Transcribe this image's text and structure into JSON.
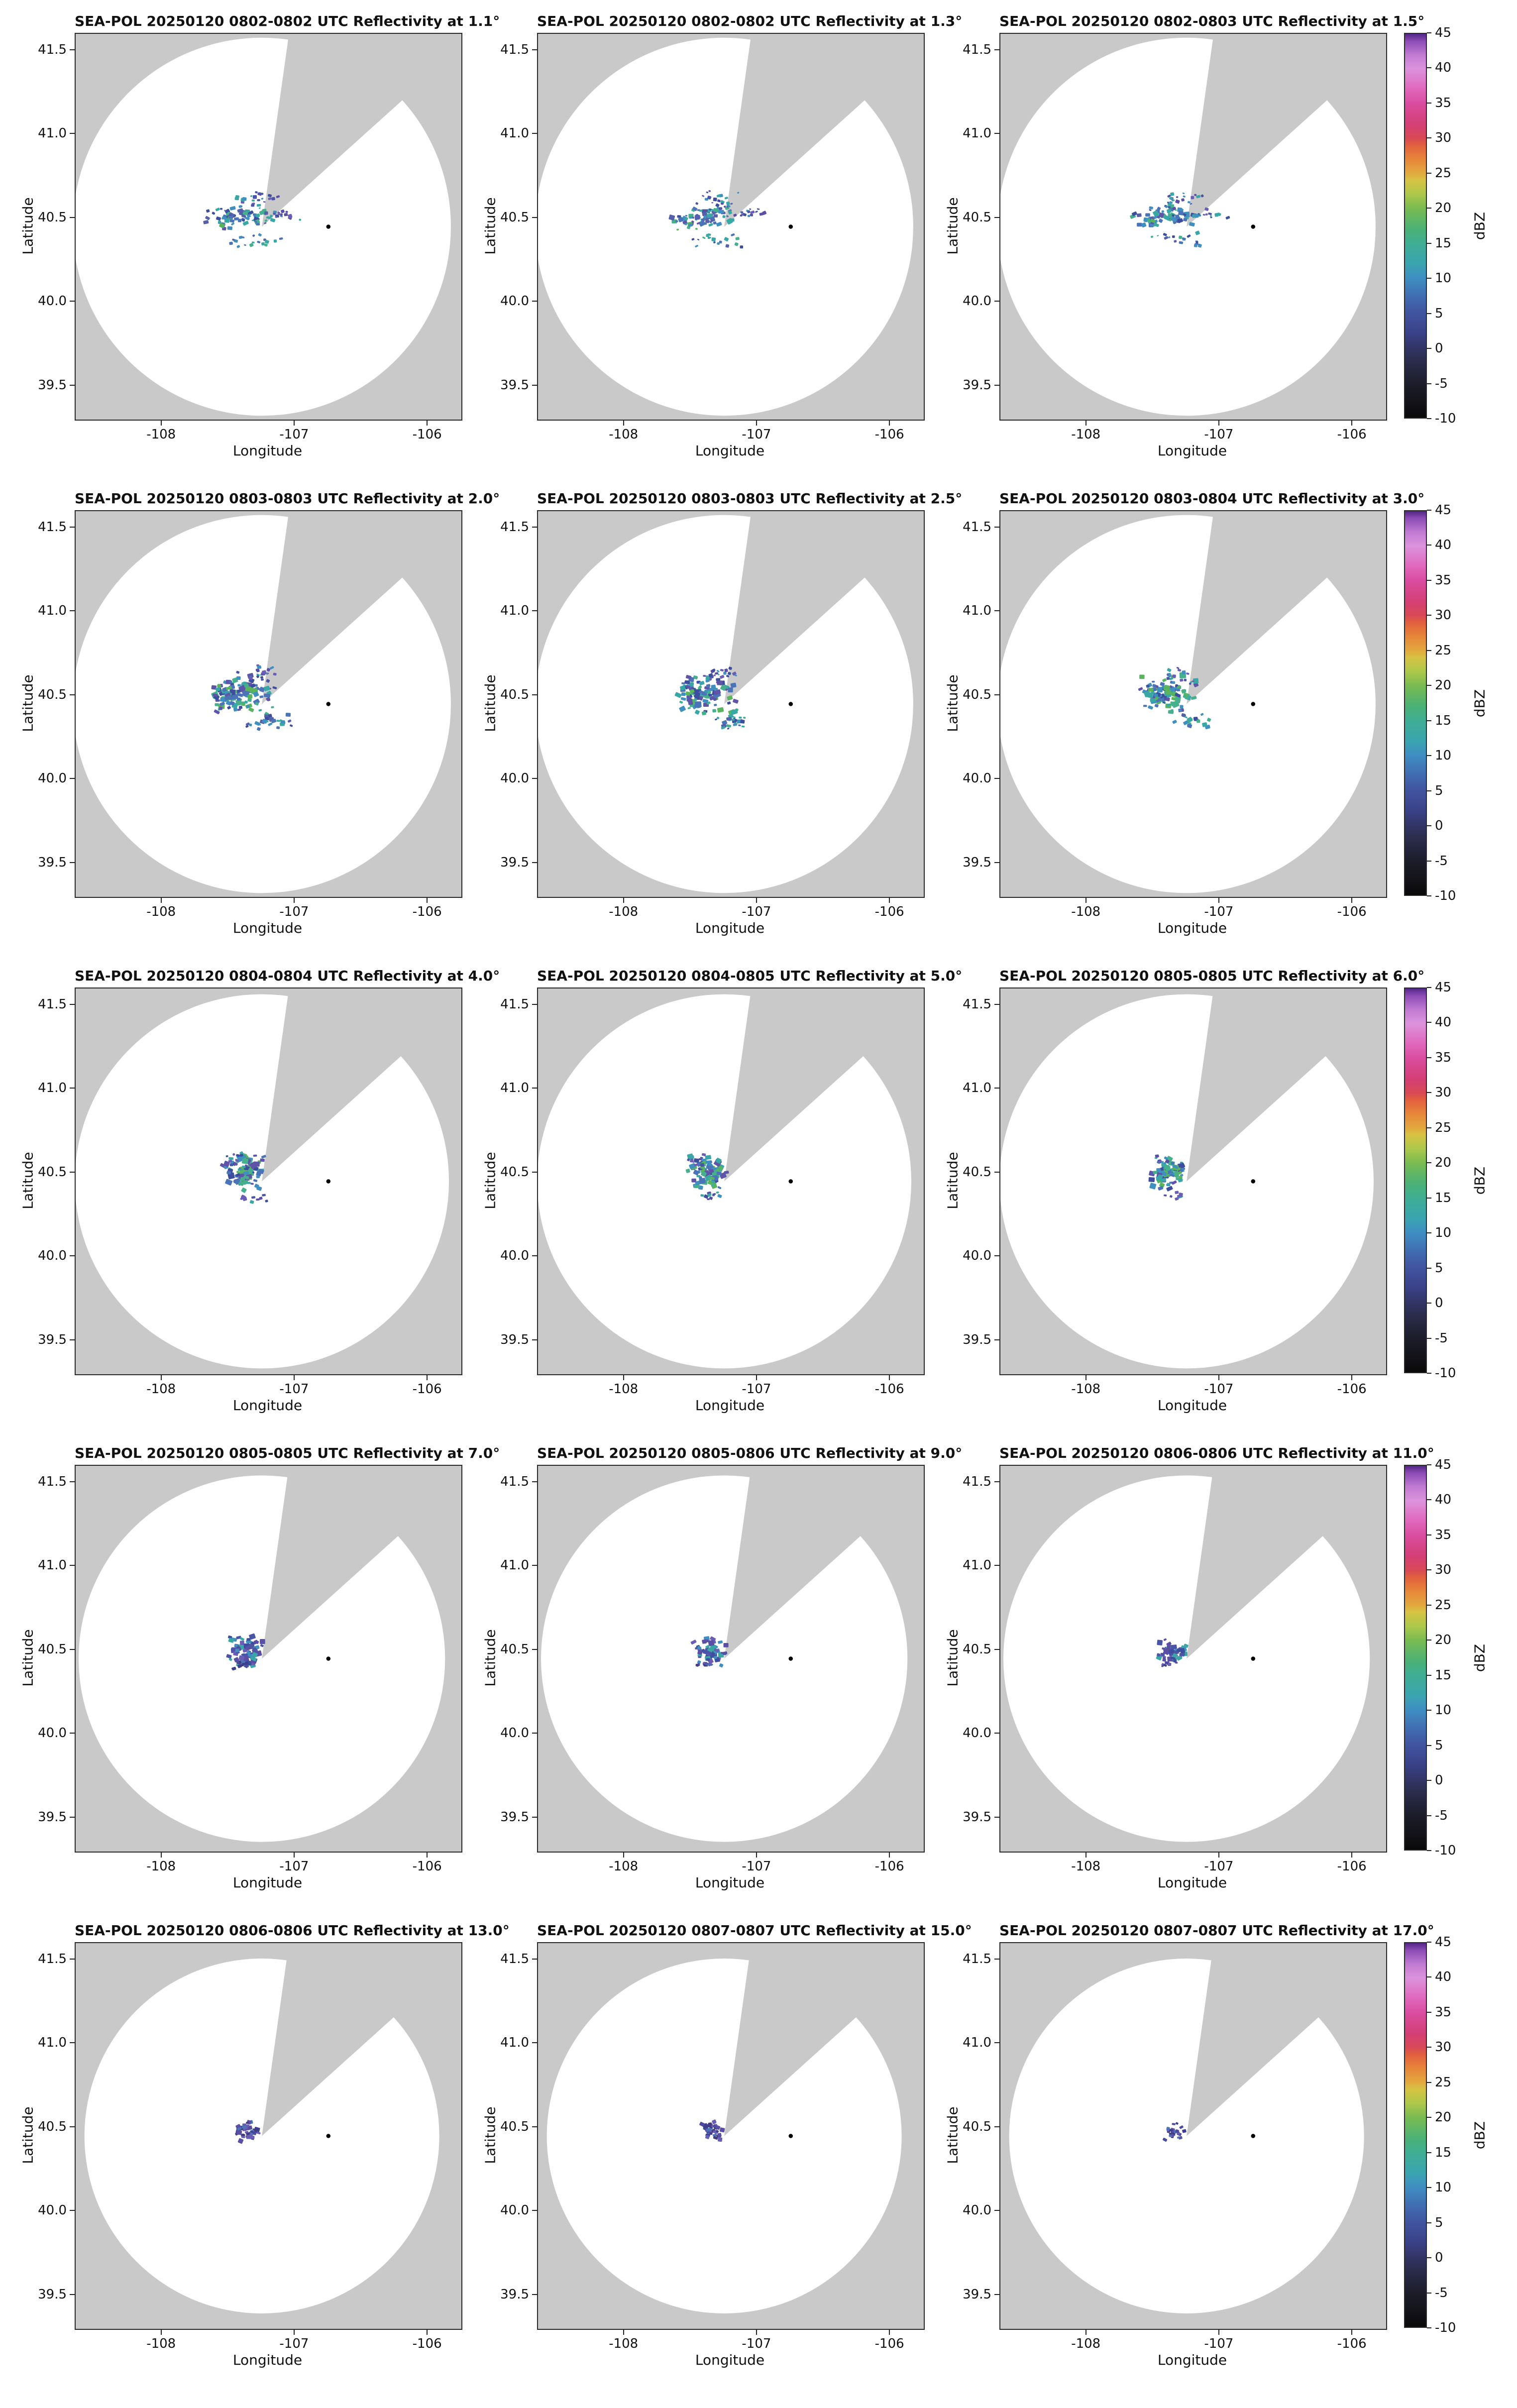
{
  "chart_data": {
    "type": "heatmap",
    "subtype": "radar-ppi-reflectivity-grid",
    "grid": {
      "rows": 5,
      "cols": 3
    },
    "figure_background": "#ffffff",
    "map_background": "#c9c9c9",
    "coverage_fill": "#ffffff",
    "axes": {
      "xlabel": "Longitude",
      "ylabel": "Latitude",
      "xlim": [
        -108.65,
        -105.75
      ],
      "ylim": [
        39.3,
        41.6
      ],
      "xticks": [
        -108,
        -107,
        -106
      ],
      "yticks": [
        41.5,
        41.0,
        40.5,
        40.0,
        39.5
      ]
    },
    "radar": {
      "center_lon": -107.25,
      "center_lat": 40.45,
      "marker_lon": -106.75,
      "marker_lat": 40.45,
      "blocked_sector_deg": [
        8,
        48
      ]
    },
    "colorbar": {
      "label": "dBZ",
      "min": -10,
      "max": 45,
      "ticks": [
        45,
        40,
        35,
        30,
        25,
        20,
        15,
        10,
        5,
        0,
        -5,
        -10
      ],
      "stops": [
        {
          "v": -10,
          "c": "#0a0a0a"
        },
        {
          "v": -7,
          "c": "#16161e"
        },
        {
          "v": -5,
          "c": "#1d1d2b"
        },
        {
          "v": -2,
          "c": "#2a2c4a"
        },
        {
          "v": 0,
          "c": "#323566"
        },
        {
          "v": 2,
          "c": "#3a4186"
        },
        {
          "v": 5,
          "c": "#41549f"
        },
        {
          "v": 7,
          "c": "#4169b0"
        },
        {
          "v": 10,
          "c": "#3f8ec2"
        },
        {
          "v": 12,
          "c": "#3aa4b0"
        },
        {
          "v": 15,
          "c": "#3fae93"
        },
        {
          "v": 17,
          "c": "#4bb176"
        },
        {
          "v": 20,
          "c": "#79bb51"
        },
        {
          "v": 22,
          "c": "#acc84a"
        },
        {
          "v": 24,
          "c": "#d6c344"
        },
        {
          "v": 25,
          "c": "#e2a93e"
        },
        {
          "v": 27,
          "c": "#e6873a"
        },
        {
          "v": 29,
          "c": "#e2603d"
        },
        {
          "v": 30,
          "c": "#d94a55"
        },
        {
          "v": 32,
          "c": "#d43f75"
        },
        {
          "v": 35,
          "c": "#d94d9f"
        },
        {
          "v": 37,
          "c": "#e066bb"
        },
        {
          "v": 40,
          "c": "#dc93dc"
        },
        {
          "v": 42,
          "c": "#c07ad2"
        },
        {
          "v": 44,
          "c": "#8a4bb4"
        },
        {
          "v": 45,
          "c": "#532687"
        }
      ]
    },
    "palettes": {
      "mix1": [
        "#4b74b8",
        "#3f8fc0",
        "#38a7a5",
        "#3e4e9e",
        "#45b08b",
        "#5560aa"
      ],
      "mix2": [
        "#38a7a5",
        "#45b08b",
        "#3f8fc0",
        "#3e4e9e",
        "#59b45e",
        "#4b74b8",
        "#5f55a8"
      ],
      "cool": [
        "#3e4e9e",
        "#4a55a8",
        "#5a4fa5",
        "#3f8fc0",
        "#38a7a5",
        "#6a5db5"
      ],
      "dark": [
        "#3b3f8e",
        "#4a4aa0",
        "#5a4fa5",
        "#433a80",
        "#4b74b8",
        "#6a5db5"
      ]
    },
    "panels": [
      {
        "title": "SEA-POL 20250120 0802-0802 UTC Reflectivity at 1.1°",
        "date": "20250120",
        "time_utc": "0802-0802",
        "elevation_deg": 1.1,
        "seed": 101,
        "circle_r": 0.49,
        "echoes": [
          {
            "cx": 0.435,
            "cy": 0.472,
            "sx": 0.055,
            "sy": 0.013,
            "n": 55,
            "smin": 6,
            "smax": 15,
            "pal": "mix1"
          },
          {
            "cx": 0.468,
            "cy": 0.432,
            "sx": 0.036,
            "sy": 0.016,
            "n": 26,
            "smin": 5,
            "smax": 11,
            "pal": "cool"
          },
          {
            "cx": 0.549,
            "cy": 0.468,
            "sx": 0.027,
            "sy": 0.008,
            "n": 16,
            "smin": 5,
            "smax": 11,
            "pal": "cool"
          },
          {
            "cx": 0.462,
            "cy": 0.537,
            "sx": 0.048,
            "sy": 0.011,
            "n": 18,
            "smin": 5,
            "smax": 11,
            "pal": "mix1"
          },
          {
            "cx": 0.39,
            "cy": 0.49,
            "sx": 0.015,
            "sy": 0.011,
            "n": 14,
            "smin": 6,
            "smax": 13,
            "pal": "mix2"
          }
        ]
      },
      {
        "title": "SEA-POL 20250120 0802-0802 UTC Reflectivity at 1.3°",
        "date": "20250120",
        "time_utc": "0802-0802",
        "elevation_deg": 1.3,
        "seed": 102,
        "circle_r": 0.49,
        "echoes": [
          {
            "cx": 0.435,
            "cy": 0.472,
            "sx": 0.055,
            "sy": 0.013,
            "n": 55,
            "smin": 6,
            "smax": 15,
            "pal": "mix1"
          },
          {
            "cx": 0.468,
            "cy": 0.432,
            "sx": 0.036,
            "sy": 0.016,
            "n": 26,
            "smin": 5,
            "smax": 11,
            "pal": "cool"
          },
          {
            "cx": 0.549,
            "cy": 0.468,
            "sx": 0.027,
            "sy": 0.008,
            "n": 16,
            "smin": 5,
            "smax": 11,
            "pal": "cool"
          },
          {
            "cx": 0.462,
            "cy": 0.537,
            "sx": 0.048,
            "sy": 0.011,
            "n": 18,
            "smin": 5,
            "smax": 11,
            "pal": "mix1"
          },
          {
            "cx": 0.39,
            "cy": 0.49,
            "sx": 0.015,
            "sy": 0.011,
            "n": 14,
            "smin": 6,
            "smax": 13,
            "pal": "mix2"
          }
        ]
      },
      {
        "title": "SEA-POL 20250120 0802-0803 UTC Reflectivity at 1.5°",
        "date": "20250120",
        "time_utc": "0802-0803",
        "elevation_deg": 1.5,
        "seed": 103,
        "circle_r": 0.49,
        "echoes": [
          {
            "cx": 0.435,
            "cy": 0.474,
            "sx": 0.052,
            "sy": 0.014,
            "n": 58,
            "smin": 6,
            "smax": 15,
            "pal": "mix1"
          },
          {
            "cx": 0.468,
            "cy": 0.433,
            "sx": 0.034,
            "sy": 0.015,
            "n": 24,
            "smin": 5,
            "smax": 11,
            "pal": "cool"
          },
          {
            "cx": 0.547,
            "cy": 0.468,
            "sx": 0.025,
            "sy": 0.008,
            "n": 14,
            "smin": 5,
            "smax": 11,
            "pal": "cool"
          },
          {
            "cx": 0.462,
            "cy": 0.536,
            "sx": 0.045,
            "sy": 0.011,
            "n": 18,
            "smin": 5,
            "smax": 11,
            "pal": "mix1"
          },
          {
            "cx": 0.391,
            "cy": 0.489,
            "sx": 0.015,
            "sy": 0.011,
            "n": 14,
            "smin": 6,
            "smax": 13,
            "pal": "mix2"
          }
        ]
      },
      {
        "title": "SEA-POL 20250120 0803-0803 UTC Reflectivity at 2.0°",
        "date": "20250120",
        "time_utc": "0803-0803",
        "elevation_deg": 2.0,
        "seed": 201,
        "circle_r": 0.49,
        "echoes": [
          {
            "cx": 0.44,
            "cy": 0.476,
            "sx": 0.048,
            "sy": 0.028,
            "n": 85,
            "smin": 7,
            "smax": 17,
            "pal": "mix2",
            "ex": 0.012
          },
          {
            "cx": 0.5,
            "cy": 0.546,
            "sx": 0.034,
            "sy": 0.012,
            "n": 26,
            "smin": 6,
            "smax": 13,
            "pal": "mix1"
          },
          {
            "cx": 0.468,
            "cy": 0.423,
            "sx": 0.03,
            "sy": 0.013,
            "n": 22,
            "smin": 5,
            "smax": 11,
            "pal": "cool"
          },
          {
            "cx": 0.391,
            "cy": 0.468,
            "sx": 0.017,
            "sy": 0.026,
            "n": 26,
            "smin": 7,
            "smax": 15,
            "pal": "mix2"
          }
        ]
      },
      {
        "title": "SEA-POL 20250120 0803-0803 UTC Reflectivity at 2.5°",
        "date": "20250120",
        "time_utc": "0803-0803",
        "elevation_deg": 2.5,
        "seed": 202,
        "circle_r": 0.49,
        "echoes": [
          {
            "cx": 0.44,
            "cy": 0.477,
            "sx": 0.046,
            "sy": 0.028,
            "n": 88,
            "smin": 7,
            "smax": 17,
            "pal": "mix2",
            "ex": 0.012
          },
          {
            "cx": 0.498,
            "cy": 0.545,
            "sx": 0.032,
            "sy": 0.012,
            "n": 24,
            "smin": 6,
            "smax": 13,
            "pal": "mix1"
          },
          {
            "cx": 0.468,
            "cy": 0.424,
            "sx": 0.028,
            "sy": 0.013,
            "n": 20,
            "smin": 5,
            "smax": 11,
            "pal": "cool"
          },
          {
            "cx": 0.392,
            "cy": 0.468,
            "sx": 0.016,
            "sy": 0.025,
            "n": 26,
            "smin": 7,
            "smax": 15,
            "pal": "mix2"
          }
        ]
      },
      {
        "title": "SEA-POL 20250120 0803-0804 UTC Reflectivity at 3.0°",
        "date": "20250120",
        "time_utc": "0803-0804",
        "elevation_deg": 3.0,
        "seed": 203,
        "circle_r": 0.49,
        "echoes": [
          {
            "cx": 0.441,
            "cy": 0.478,
            "sx": 0.042,
            "sy": 0.027,
            "n": 88,
            "smin": 7,
            "smax": 17,
            "pal": "mix2",
            "ex": 0.012
          },
          {
            "cx": 0.494,
            "cy": 0.543,
            "sx": 0.028,
            "sy": 0.011,
            "n": 20,
            "smin": 6,
            "smax": 13,
            "pal": "mix1"
          },
          {
            "cx": 0.466,
            "cy": 0.427,
            "sx": 0.026,
            "sy": 0.012,
            "n": 18,
            "smin": 5,
            "smax": 11,
            "pal": "cool"
          },
          {
            "cx": 0.393,
            "cy": 0.469,
            "sx": 0.016,
            "sy": 0.024,
            "n": 24,
            "smin": 7,
            "smax": 15,
            "pal": "mix2"
          }
        ]
      },
      {
        "title": "SEA-POL 20250120 0804-0804 UTC Reflectivity at 4.0°",
        "date": "20250120",
        "time_utc": "0804-0804",
        "elevation_deg": 4.0,
        "seed": 301,
        "circle_r": 0.485,
        "echoes": [
          {
            "cx": 0.437,
            "cy": 0.479,
            "sx": 0.03,
            "sy": 0.026,
            "n": 90,
            "smin": 8,
            "smax": 17,
            "pal": "mix2",
            "ex": 0.013
          },
          {
            "cx": 0.461,
            "cy": 0.543,
            "sx": 0.02,
            "sy": 0.007,
            "n": 10,
            "smin": 6,
            "smax": 11,
            "pal": "cool"
          },
          {
            "cx": 0.412,
            "cy": 0.441,
            "sx": 0.018,
            "sy": 0.009,
            "n": 12,
            "smin": 6,
            "smax": 11,
            "pal": "cool"
          }
        ]
      },
      {
        "title": "SEA-POL 20250120 0804-0805 UTC Reflectivity at 5.0°",
        "date": "20250120",
        "time_utc": "0804-0805",
        "elevation_deg": 5.0,
        "seed": 302,
        "circle_r": 0.485,
        "echoes": [
          {
            "cx": 0.438,
            "cy": 0.48,
            "sx": 0.029,
            "sy": 0.024,
            "n": 85,
            "smin": 8,
            "smax": 17,
            "pal": "mix2",
            "ex": 0.013
          },
          {
            "cx": 0.459,
            "cy": 0.54,
            "sx": 0.018,
            "sy": 0.007,
            "n": 10,
            "smin": 6,
            "smax": 11,
            "pal": "cool"
          },
          {
            "cx": 0.414,
            "cy": 0.444,
            "sx": 0.016,
            "sy": 0.009,
            "n": 10,
            "smin": 6,
            "smax": 11,
            "pal": "cool"
          }
        ]
      },
      {
        "title": "SEA-POL 20250120 0805-0805 UTC Reflectivity at 6.0°",
        "date": "20250120",
        "time_utc": "0805-0805",
        "elevation_deg": 6.0,
        "seed": 303,
        "circle_r": 0.485,
        "echoes": [
          {
            "cx": 0.439,
            "cy": 0.481,
            "sx": 0.028,
            "sy": 0.023,
            "n": 80,
            "smin": 8,
            "smax": 16,
            "pal": "mix2",
            "ex": 0.013
          },
          {
            "cx": 0.457,
            "cy": 0.537,
            "sx": 0.016,
            "sy": 0.007,
            "n": 8,
            "smin": 6,
            "smax": 11,
            "pal": "cool"
          },
          {
            "cx": 0.416,
            "cy": 0.447,
            "sx": 0.015,
            "sy": 0.008,
            "n": 9,
            "smin": 6,
            "smax": 11,
            "pal": "cool"
          }
        ]
      },
      {
        "title": "SEA-POL 20250120 0805-0805 UTC Reflectivity at 7.0°",
        "date": "20250120",
        "time_utc": "0805-0805",
        "elevation_deg": 7.0,
        "seed": 401,
        "circle_r": 0.475,
        "echoes": [
          {
            "cx": 0.444,
            "cy": 0.481,
            "sx": 0.025,
            "sy": 0.021,
            "n": 70,
            "smin": 8,
            "smax": 16,
            "pal": "cool",
            "ex": 0.012
          },
          {
            "cx": 0.429,
            "cy": 0.519,
            "sx": 0.016,
            "sy": 0.007,
            "n": 10,
            "smin": 6,
            "smax": 11,
            "pal": "dark"
          }
        ]
      },
      {
        "title": "SEA-POL 20250120 0805-0806 UTC Reflectivity at 9.0°",
        "date": "20250120",
        "time_utc": "0805-0806",
        "elevation_deg": 9.0,
        "seed": 402,
        "circle_r": 0.475,
        "echoes": [
          {
            "cx": 0.446,
            "cy": 0.483,
            "sx": 0.023,
            "sy": 0.019,
            "n": 62,
            "smin": 8,
            "smax": 15,
            "pal": "cool",
            "ex": 0.012
          },
          {
            "cx": 0.432,
            "cy": 0.516,
            "sx": 0.014,
            "sy": 0.007,
            "n": 9,
            "smin": 6,
            "smax": 11,
            "pal": "dark"
          }
        ]
      },
      {
        "title": "SEA-POL 20250120 0806-0806 UTC Reflectivity at 11.0°",
        "date": "20250120",
        "time_utc": "0806-0806",
        "elevation_deg": 11.0,
        "seed": 403,
        "circle_r": 0.475,
        "echoes": [
          {
            "cx": 0.447,
            "cy": 0.484,
            "sx": 0.021,
            "sy": 0.018,
            "n": 55,
            "smin": 7,
            "smax": 15,
            "pal": "cool",
            "ex": 0.011
          },
          {
            "cx": 0.435,
            "cy": 0.513,
            "sx": 0.013,
            "sy": 0.006,
            "n": 8,
            "smin": 6,
            "smax": 11,
            "pal": "dark"
          }
        ]
      },
      {
        "title": "SEA-POL 20250120 0806-0806 UTC Reflectivity at 13.0°",
        "date": "20250120",
        "time_utc": "0806-0806",
        "elevation_deg": 13.0,
        "seed": 501,
        "circle_r": 0.46,
        "echoes": [
          {
            "cx": 0.449,
            "cy": 0.486,
            "sx": 0.019,
            "sy": 0.016,
            "n": 48,
            "smin": 7,
            "smax": 14,
            "pal": "dark",
            "ex": 0.011
          }
        ]
      },
      {
        "title": "SEA-POL 20250120 0807-0807 UTC Reflectivity at 15.0°",
        "date": "20250120",
        "time_utc": "0807-0807",
        "elevation_deg": 15.0,
        "seed": 502,
        "circle_r": 0.46,
        "echoes": [
          {
            "cx": 0.451,
            "cy": 0.487,
            "sx": 0.016,
            "sy": 0.014,
            "n": 40,
            "smin": 7,
            "smax": 13,
            "pal": "dark",
            "ex": 0.01
          }
        ]
      },
      {
        "title": "SEA-POL 20250120 0807-0807 UTC Reflectivity at 17.0°",
        "date": "20250120",
        "time_utc": "0807-0807",
        "elevation_deg": 17.0,
        "seed": 503,
        "circle_r": 0.46,
        "echoes": [
          {
            "cx": 0.452,
            "cy": 0.488,
            "sx": 0.013,
            "sy": 0.012,
            "n": 28,
            "smin": 6,
            "smax": 12,
            "pal": "dark",
            "ex": 0.01
          }
        ]
      }
    ]
  }
}
